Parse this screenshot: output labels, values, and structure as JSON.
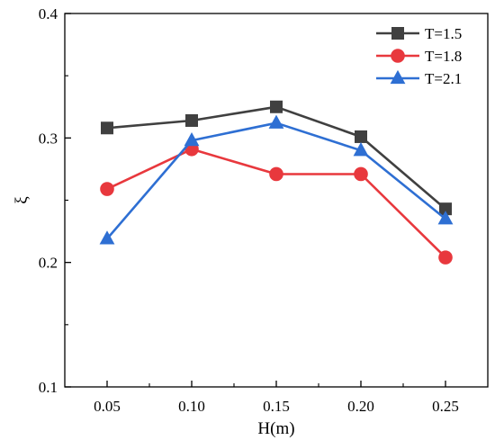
{
  "chart_data": {
    "type": "line",
    "title": "",
    "xlabel": "H(m)",
    "ylabel": "ξ",
    "x": [
      0.05,
      0.1,
      0.15,
      0.2,
      0.25
    ],
    "x_tick_labels": [
      "0.05",
      "0.10",
      "0.15",
      "0.20",
      "0.25"
    ],
    "xlim": [
      0.025,
      0.275
    ],
    "ylim": [
      0.1,
      0.4
    ],
    "y_ticks": [
      0.1,
      0.2,
      0.3,
      0.4
    ],
    "y_tick_labels": [
      "0.1",
      "0.2",
      "0.3",
      "0.4"
    ],
    "grid": false,
    "legend_position": "top-right",
    "series": [
      {
        "name": "T=1.5",
        "color": "#404040",
        "marker": "square",
        "values": [
          0.308,
          0.314,
          0.325,
          0.301,
          0.243
        ]
      },
      {
        "name": "T=1.8",
        "color": "#e8383d",
        "marker": "circle",
        "values": [
          0.259,
          0.291,
          0.271,
          0.271,
          0.204
        ]
      },
      {
        "name": "T=2.1",
        "color": "#2e6fd3",
        "marker": "triangle",
        "values": [
          0.219,
          0.298,
          0.312,
          0.29,
          0.235
        ]
      }
    ]
  }
}
